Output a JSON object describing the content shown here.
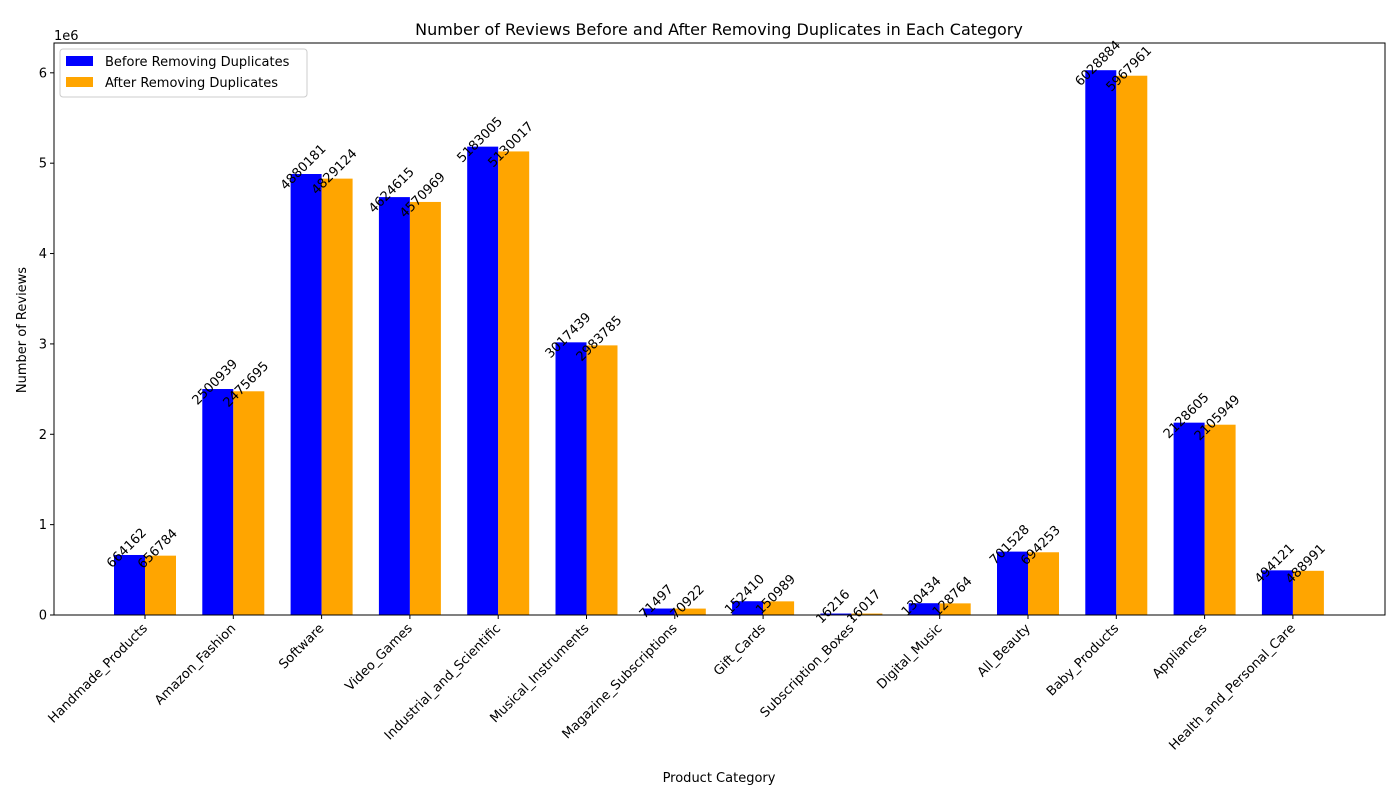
{
  "chart_data": {
    "type": "bar",
    "title": "Number of Reviews Before and After Removing Duplicates in Each Category",
    "xlabel": "Product Category",
    "ylabel": "Number of Reviews",
    "offset_label": "1e6",
    "ylim": [
      0,
      6330000
    ],
    "yticks": [
      0,
      1000000,
      2000000,
      3000000,
      4000000,
      5000000,
      6000000
    ],
    "ytick_labels": [
      "0",
      "1",
      "2",
      "3",
      "4",
      "5",
      "6"
    ],
    "grid": false,
    "legend_position": "top-left",
    "categories": [
      "Handmade_Products",
      "Amazon_Fashion",
      "Software",
      "Video_Games",
      "Industrial_and_Scientific",
      "Musical_Instruments",
      "Magazine_Subscriptions",
      "Gift_Cards",
      "Subscription_Boxes",
      "Digital_Music",
      "All_Beauty",
      "Baby_Products",
      "Appliances",
      "Health_and_Personal_Care"
    ],
    "series": [
      {
        "name": "Before Removing Duplicates",
        "color": "#0000ff",
        "values": [
          664162,
          2500939,
          4880181,
          4624615,
          5183005,
          3017439,
          71497,
          152410,
          16216,
          130434,
          701528,
          6028884,
          2128605,
          494121
        ]
      },
      {
        "name": "After Removing Duplicates",
        "color": "#ffa500",
        "values": [
          656784,
          2475695,
          4829124,
          4570969,
          5130017,
          2983785,
          70922,
          150989,
          16017,
          128764,
          694253,
          5967961,
          2105949,
          488991
        ]
      }
    ]
  }
}
